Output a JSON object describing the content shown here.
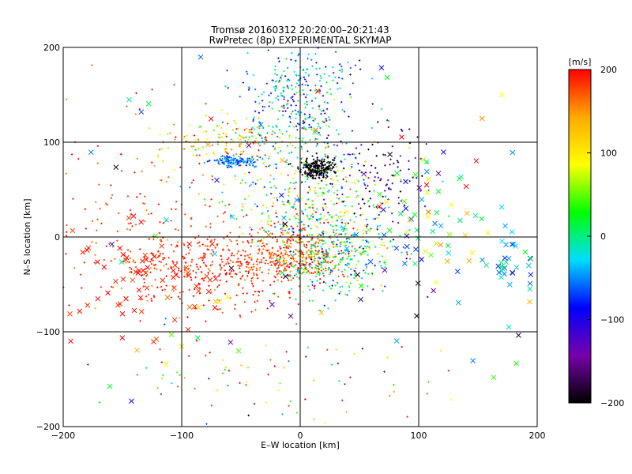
{
  "chart_data": {
    "type": "scatter",
    "title": "Tromsø 20160312 20:20:00–20:21:43",
    "subtitle": "RwPretec (8p) EXPERIMENTAL SKYMAP",
    "xlabel": "E–W location [km]",
    "ylabel": "N–S location [km]",
    "xlim": [
      -200,
      200
    ],
    "ylim": [
      -200,
      200
    ],
    "grid": true,
    "x_ticks": [
      -200,
      -100,
      0,
      100,
      200
    ],
    "y_ticks": [
      -200,
      -100,
      0,
      100,
      200
    ],
    "colorbar": {
      "unit": "[m/s]",
      "range": [
        -200,
        200
      ],
      "ticks": [
        200,
        100,
        0,
        -100,
        -200
      ],
      "colors": [
        "#000000",
        "#7700aa",
        "#0000ff",
        "#00ddff",
        "#00ff00",
        "#ffff00",
        "#ffaa00",
        "#ff0000"
      ]
    },
    "clusters": [
      {
        "name": "black-core",
        "center": [
          15,
          72
        ],
        "spread": [
          7,
          5
        ],
        "count": 230,
        "velocity": -200,
        "vel_spread": 5,
        "marker": "plus"
      },
      {
        "name": "cyan-blob",
        "center": [
          -55,
          80
        ],
        "spread": [
          10,
          3
        ],
        "count": 120,
        "velocity": -60,
        "vel_spread": 20,
        "marker": "plus"
      },
      {
        "name": "red-south-west",
        "center": [
          -70,
          -30
        ],
        "spread": [
          40,
          20
        ],
        "count": 420,
        "velocity": 185,
        "vel_spread": 15,
        "marker": "plus"
      },
      {
        "name": "red-center",
        "center": [
          0,
          -18
        ],
        "spread": [
          18,
          14
        ],
        "count": 320,
        "velocity": 170,
        "vel_spread": 25,
        "marker": "plus"
      },
      {
        "name": "mixed-center-east",
        "center": [
          30,
          -25
        ],
        "spread": [
          25,
          20
        ],
        "count": 320,
        "velocity": 0,
        "vel_spread": 60,
        "marker": "plus"
      },
      {
        "name": "upper-center",
        "center": [
          0,
          140
        ],
        "spread": [
          25,
          35
        ],
        "count": 380,
        "velocity": -40,
        "vel_spread": 50,
        "marker": "plus"
      },
      {
        "name": "upper-west-band",
        "center": [
          -60,
          100
        ],
        "spread": [
          35,
          12
        ],
        "count": 150,
        "velocity": 120,
        "vel_spread": 50,
        "marker": "plus"
      },
      {
        "name": "center-north",
        "center": [
          10,
          30
        ],
        "spread": [
          35,
          25
        ],
        "count": 350,
        "velocity": 40,
        "vel_spread": 80,
        "marker": "plus"
      },
      {
        "name": "east-purple",
        "center": [
          65,
          60
        ],
        "spread": [
          20,
          30
        ],
        "count": 120,
        "velocity": -150,
        "vel_spread": 40,
        "marker": "plus"
      },
      {
        "name": "west-sparse",
        "center": [
          -130,
          20
        ],
        "spread": [
          40,
          60
        ],
        "count": 160,
        "velocity": 185,
        "vel_spread": 20,
        "marker": "plus"
      },
      {
        "name": "west-crosses",
        "center": [
          -130,
          -40
        ],
        "spread": [
          35,
          30
        ],
        "count": 70,
        "velocity": 190,
        "vel_spread": 10,
        "marker": "x"
      },
      {
        "name": "south-sparse",
        "center": [
          -20,
          -150
        ],
        "spread": [
          70,
          30
        ],
        "count": 90,
        "velocity": 80,
        "vel_spread": 120,
        "marker": "plus"
      },
      {
        "name": "far-east-crosses",
        "center": [
          180,
          -30
        ],
        "spread": [
          15,
          18
        ],
        "count": 35,
        "velocity": -40,
        "vel_spread": 30,
        "marker": "x"
      },
      {
        "name": "east-crosses",
        "center": [
          110,
          10
        ],
        "spread": [
          30,
          40
        ],
        "count": 60,
        "velocity": 0,
        "vel_spread": 90,
        "marker": "x"
      },
      {
        "name": "random-crosses",
        "center": [
          0,
          0
        ],
        "spread": [
          110,
          110
        ],
        "count": 90,
        "velocity": 0,
        "vel_spread": 150,
        "marker": "x"
      }
    ]
  }
}
